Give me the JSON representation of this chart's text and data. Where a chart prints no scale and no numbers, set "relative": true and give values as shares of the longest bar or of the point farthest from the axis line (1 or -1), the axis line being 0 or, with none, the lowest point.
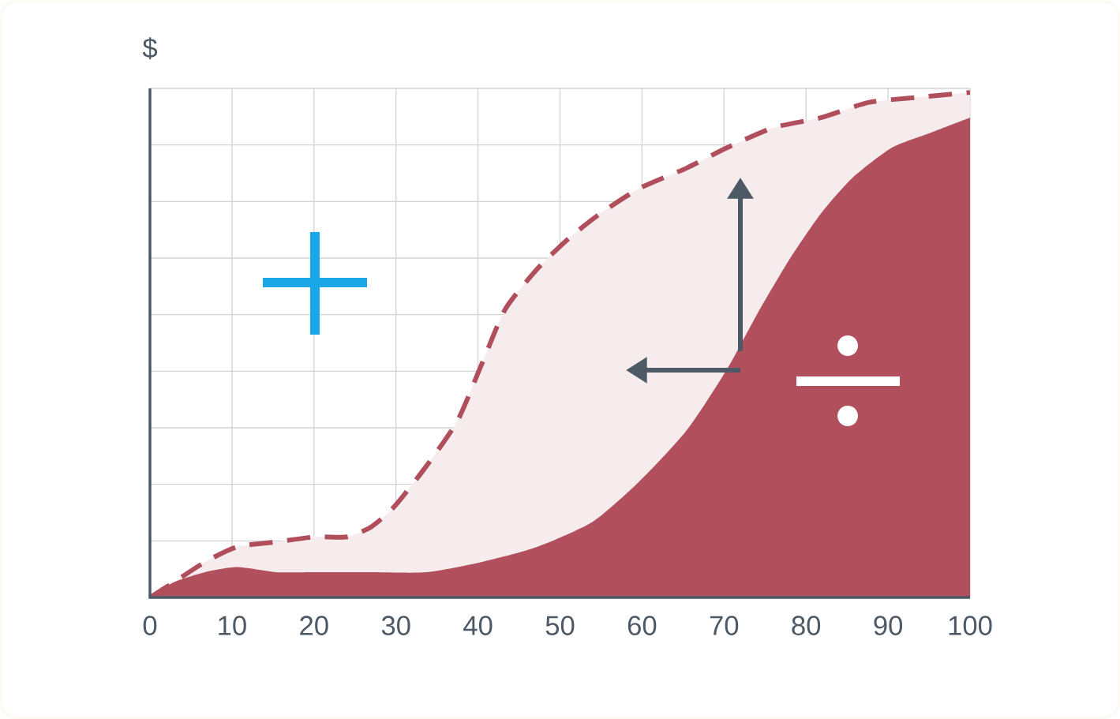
{
  "chart_data": {
    "type": "area",
    "ylabel": "$",
    "relative": true,
    "grid": true,
    "tick_labels": "x",
    "xlim": [
      0,
      100
    ],
    "xticks": [
      0,
      10,
      20,
      30,
      40,
      50,
      60,
      70,
      80,
      90,
      100
    ],
    "series": [
      {
        "color": "#b04e5c",
        "line_style": "dashed",
        "x": [
          0,
          2.9,
          6.7,
          10.6,
          15.4,
          20.2,
          24,
          27,
          29.8,
          33.7,
          37.5,
          40.4,
          43.3,
          47.2,
          51,
          54.9,
          59.7,
          65.4,
          70.3,
          76,
          81.8,
          87.6,
          93.4,
          100
        ],
        "values": [
          0,
          0.03,
          0.07,
          0.1,
          0.11,
          0.12,
          0.12,
          0.14,
          0.18,
          0.26,
          0.35,
          0.46,
          0.57,
          0.65,
          0.71,
          0.76,
          0.81,
          0.85,
          0.89,
          0.93,
          0.95,
          0.98,
          0.99,
          1
        ]
      },
      {
        "color": "#b14f5c",
        "line_style": "solid",
        "x": [
          0,
          2.9,
          6.7,
          10.6,
          15.4,
          20.2,
          27,
          33.7,
          40.4,
          47.2,
          54,
          59.7,
          65.4,
          70.3,
          74,
          78,
          81.8,
          85.6,
          90.4,
          95.2,
          100
        ],
        "values": [
          0,
          0.03,
          0.05,
          0.06,
          0.05,
          0.05,
          0.05,
          0.05,
          0.07,
          0.1,
          0.15,
          0.23,
          0.33,
          0.45,
          0.56,
          0.67,
          0.76,
          0.83,
          0.89,
          0.92,
          0.95
        ]
      }
    ]
  }
}
